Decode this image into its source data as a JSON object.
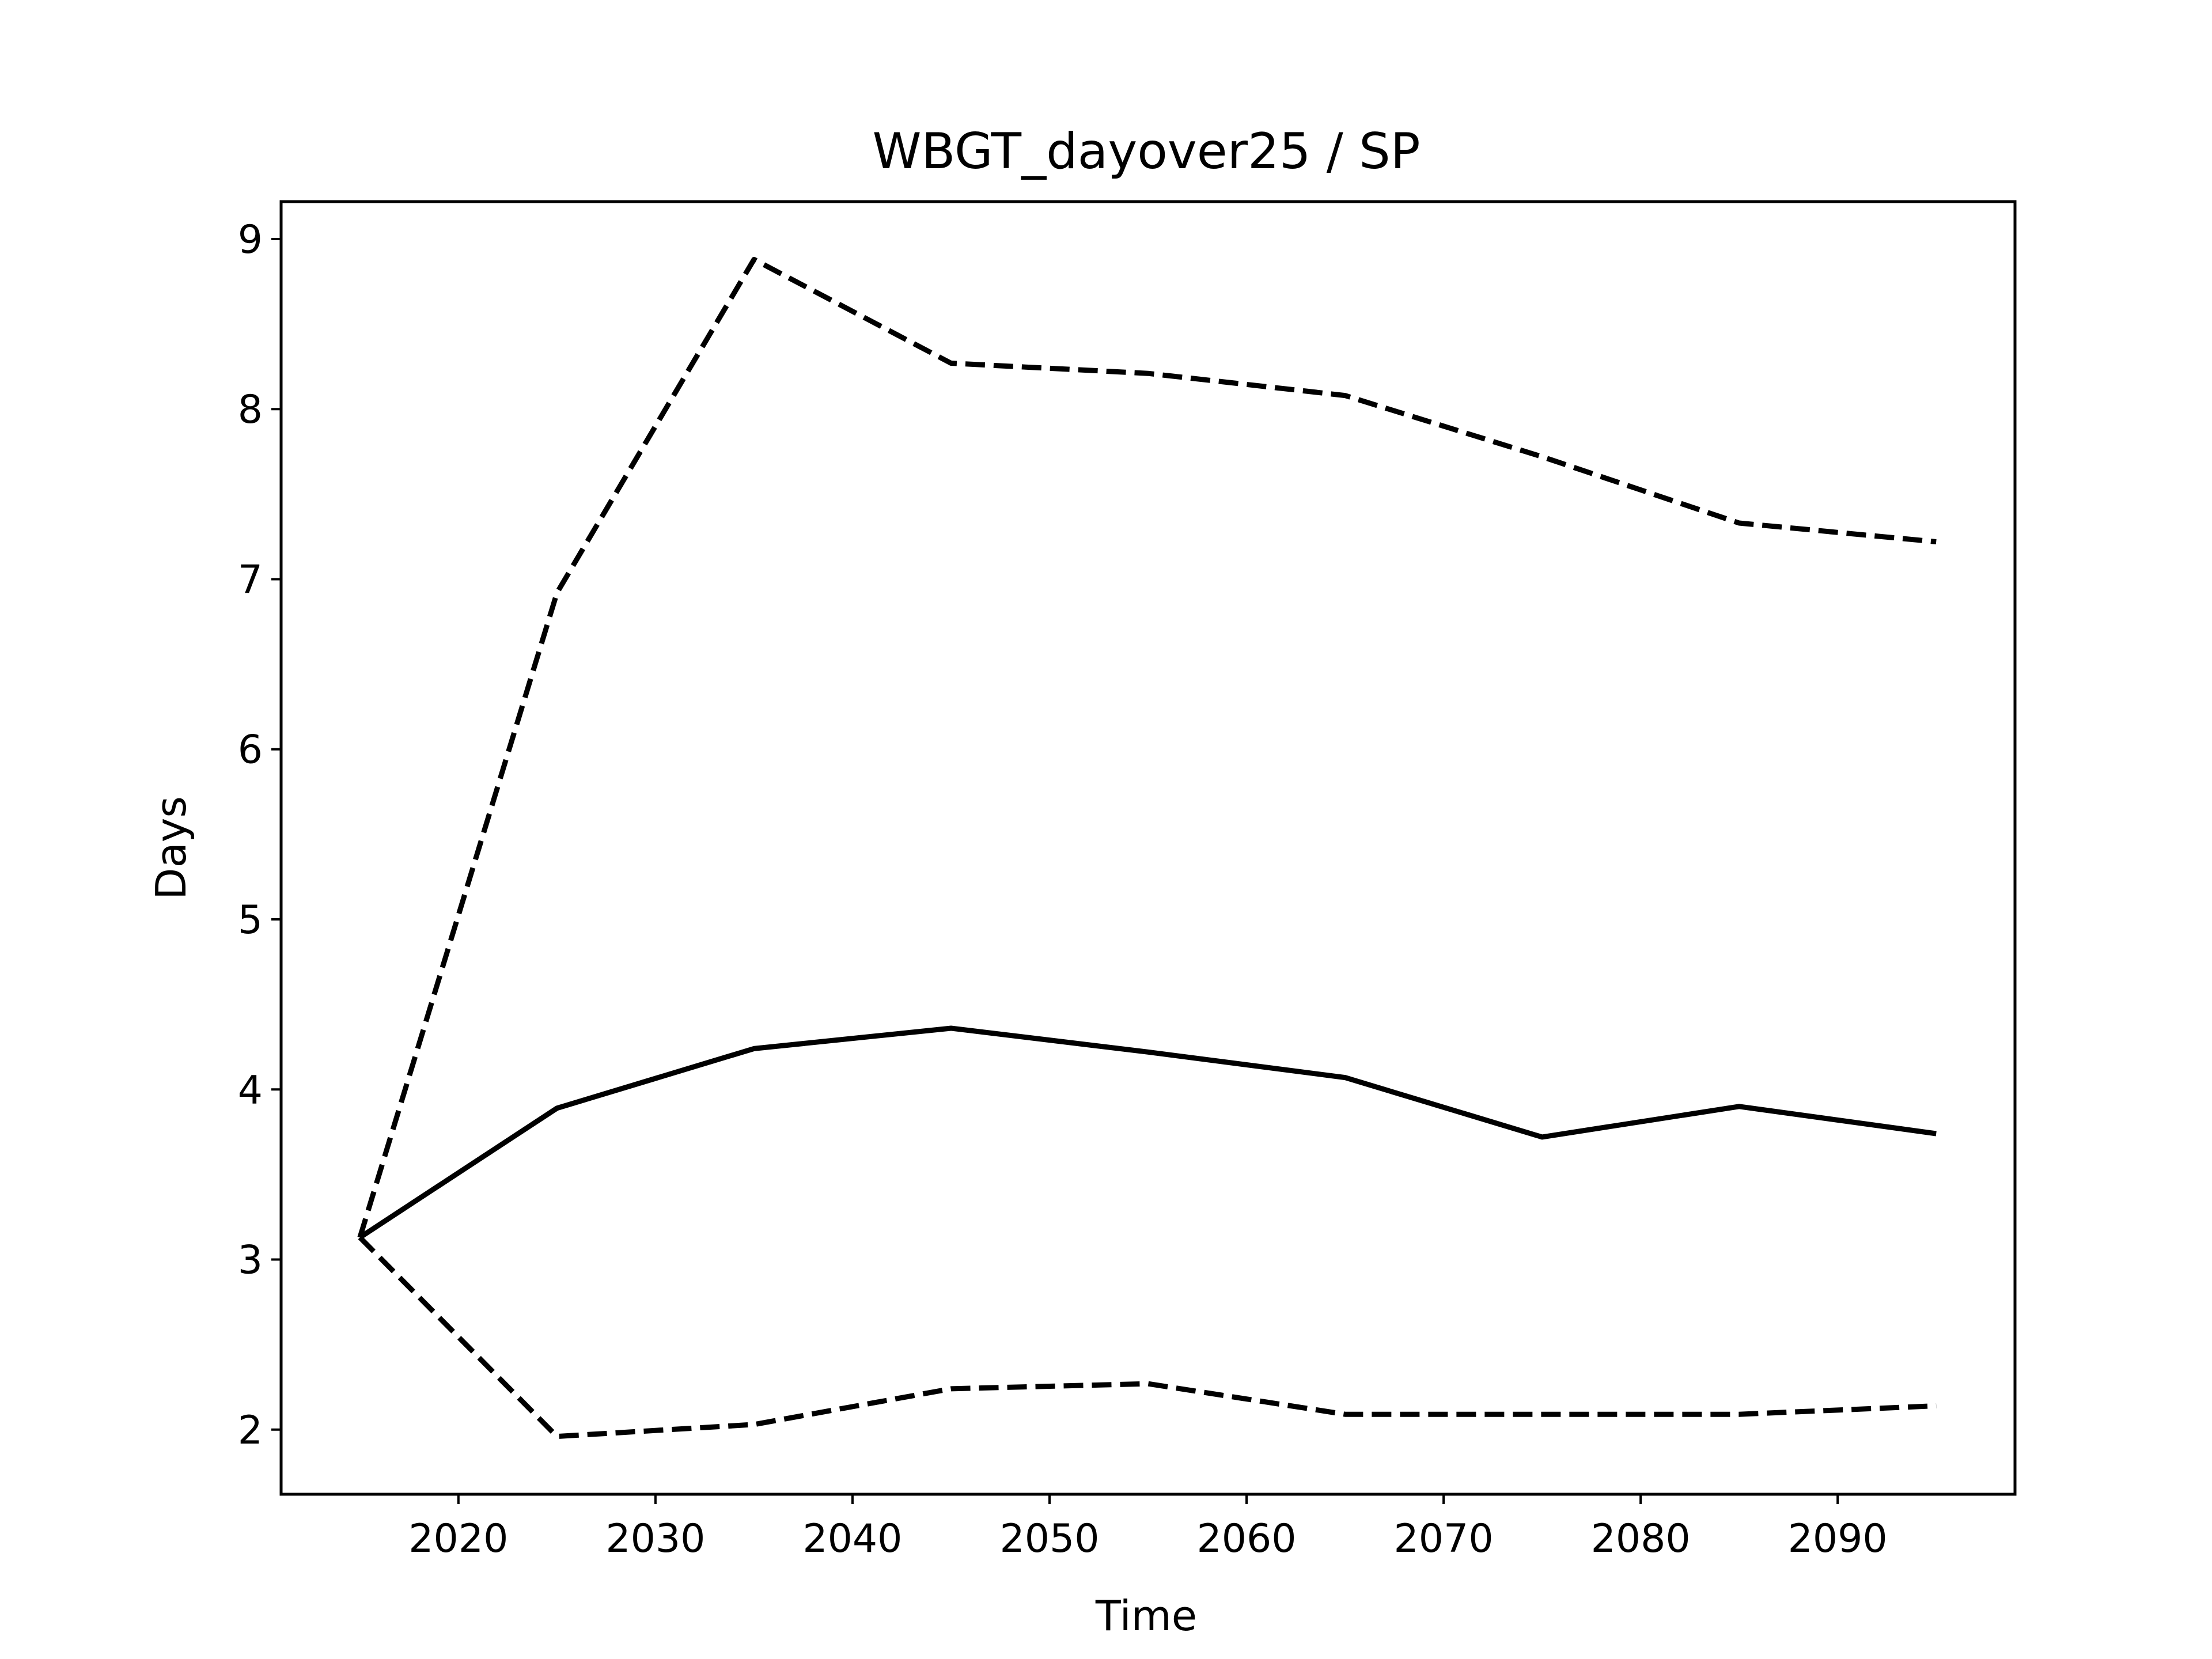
{
  "chart_data": {
    "type": "line",
    "title": "WBGT_dayover25 / SP",
    "xlabel": "Time",
    "ylabel": "Days",
    "xlim": [
      2011,
      2099
    ],
    "ylim": [
      1.62,
      9.22
    ],
    "xticks": [
      "2020",
      "2030",
      "2040",
      "2050",
      "2060",
      "2070",
      "2080",
      "2090"
    ],
    "yticks": [
      "2",
      "3",
      "4",
      "5",
      "6",
      "7",
      "8",
      "9"
    ],
    "grid": false,
    "legend": "none",
    "x": [
      2015,
      2025,
      2035,
      2045,
      2055,
      2065,
      2075,
      2085,
      2095
    ],
    "series": [
      {
        "style": "solid",
        "color": "#000000",
        "values": [
          3.13,
          3.89,
          4.24,
          4.36,
          4.22,
          4.07,
          3.72,
          3.9,
          3.74
        ]
      },
      {
        "style": "dashed",
        "color": "#000000",
        "values": [
          3.13,
          6.92,
          8.88,
          8.27,
          8.21,
          8.08,
          7.72,
          7.33,
          7.22
        ]
      },
      {
        "style": "dashed",
        "color": "#000000",
        "values": [
          3.13,
          1.96,
          2.03,
          2.24,
          2.27,
          2.09,
          2.09,
          2.09,
          2.14
        ]
      }
    ]
  }
}
